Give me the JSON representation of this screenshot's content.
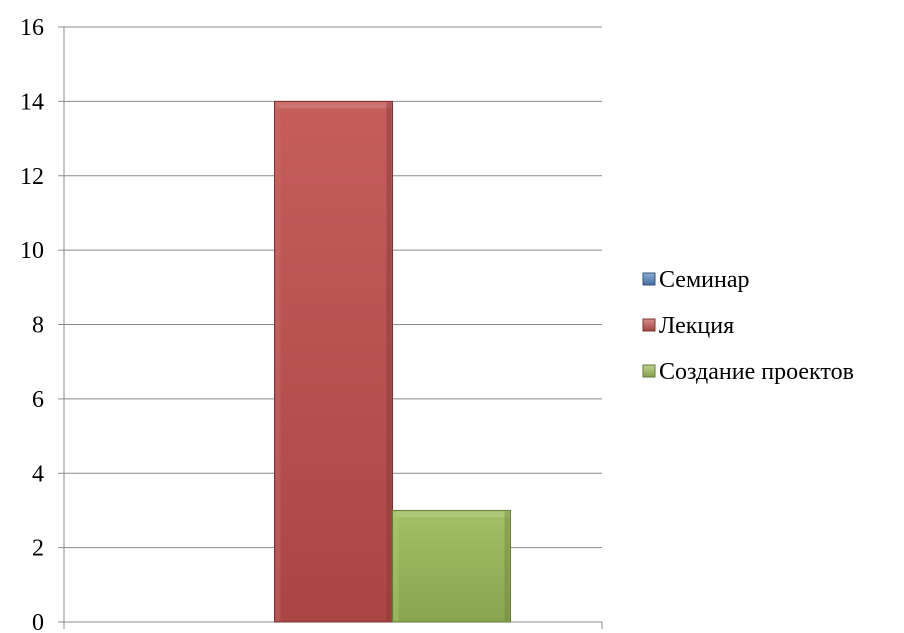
{
  "chart_data": {
    "type": "bar",
    "categories": [
      ""
    ],
    "series": [
      {
        "name": "Семинар",
        "values": [
          0
        ],
        "color": "#4F81BD"
      },
      {
        "name": "Лекция",
        "values": [
          14
        ],
        "color": "#C0504D"
      },
      {
        "name": "Создание проектов",
        "values": [
          3
        ],
        "color": "#9BBB59"
      }
    ],
    "ylim": [
      0,
      16
    ],
    "yticks": [
      0,
      2,
      4,
      6,
      8,
      10,
      12,
      14,
      16
    ],
    "grid": true,
    "legend_position": "right",
    "title": "",
    "xlabel": "",
    "ylabel": ""
  }
}
